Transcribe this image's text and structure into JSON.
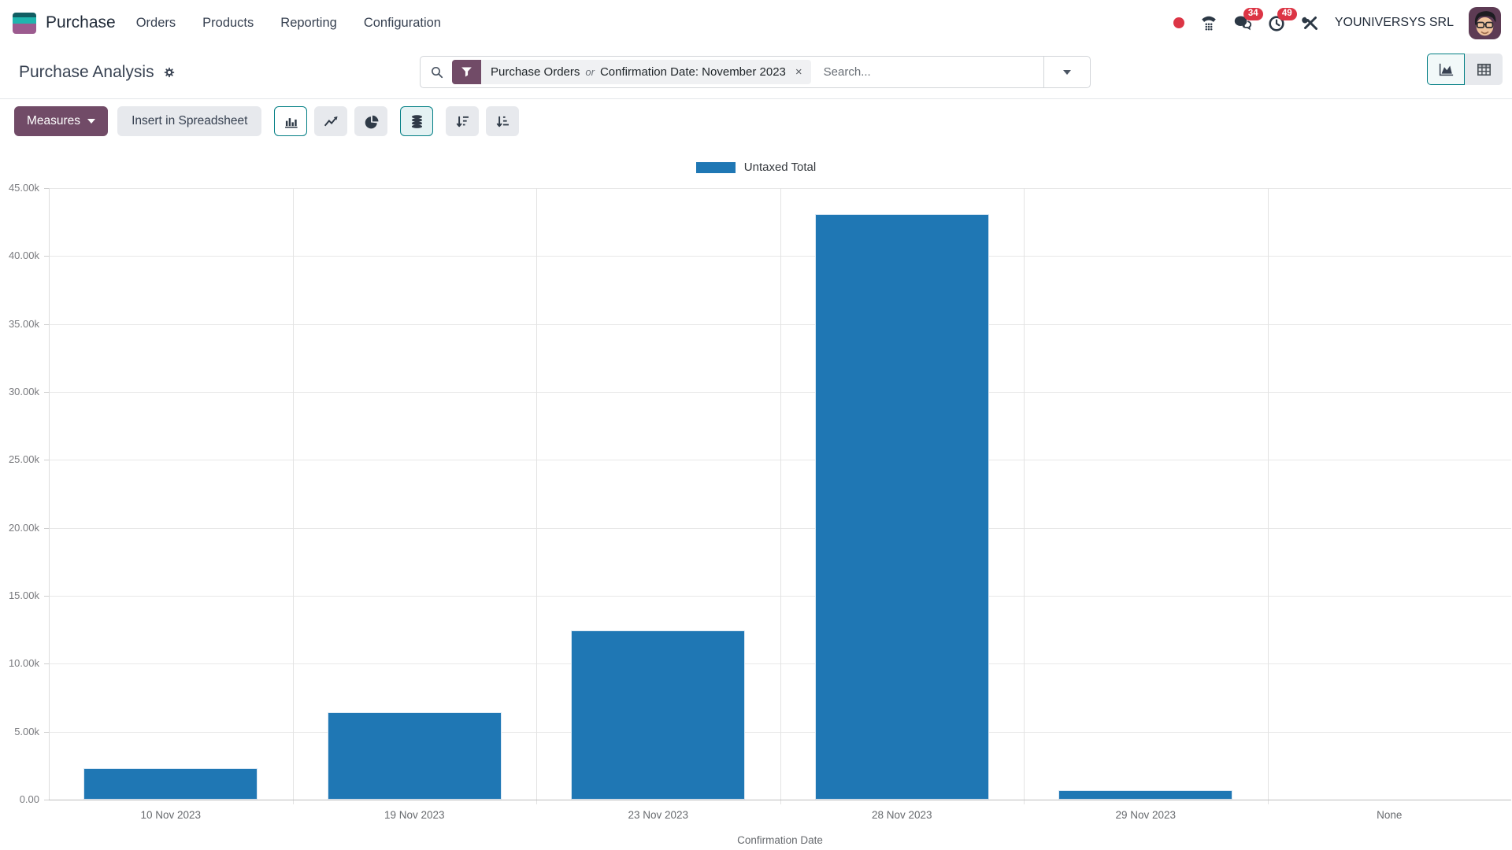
{
  "app": {
    "name": "Purchase",
    "menu_items": [
      "Orders",
      "Products",
      "Reporting",
      "Configuration"
    ],
    "company": "YOUNIVERSYS SRL",
    "messages_badge": "34",
    "activities_badge": "49"
  },
  "control_panel": {
    "title": "Purchase Analysis",
    "search_placeholder": "Search...",
    "facet": {
      "part1": "Purchase Orders",
      "separator": "or",
      "part2": "Confirmation Date: November 2023",
      "remove": "×"
    }
  },
  "toolbar": {
    "measures": "Measures",
    "insert_spreadsheet": "Insert in Spreadsheet"
  },
  "chart_data": {
    "type": "bar",
    "title": "",
    "xlabel": "Confirmation Date",
    "ylabel": "",
    "categories": [
      "10 Nov 2023",
      "19 Nov 2023",
      "23 Nov 2023",
      "28 Nov 2023",
      "29 Nov 2023",
      "None"
    ],
    "series": [
      {
        "name": "Untaxed Total",
        "color": "#1f77b4",
        "values": [
          2300,
          6400,
          12450,
          43100,
          700,
          0
        ]
      }
    ],
    "ylim": [
      0,
      45000
    ],
    "ytick_step": 5000,
    "ytick_labels": [
      "0.00",
      "5.00k",
      "10.00k",
      "15.00k",
      "20.00k",
      "25.00k",
      "30.00k",
      "35.00k",
      "40.00k",
      "45.00k"
    ],
    "grid": true,
    "legend_position": "top"
  },
  "colors": {
    "primary": "#714B67",
    "accent_teal": "#017e84",
    "bar": "#1f77b4",
    "badge": "#dc3545"
  }
}
